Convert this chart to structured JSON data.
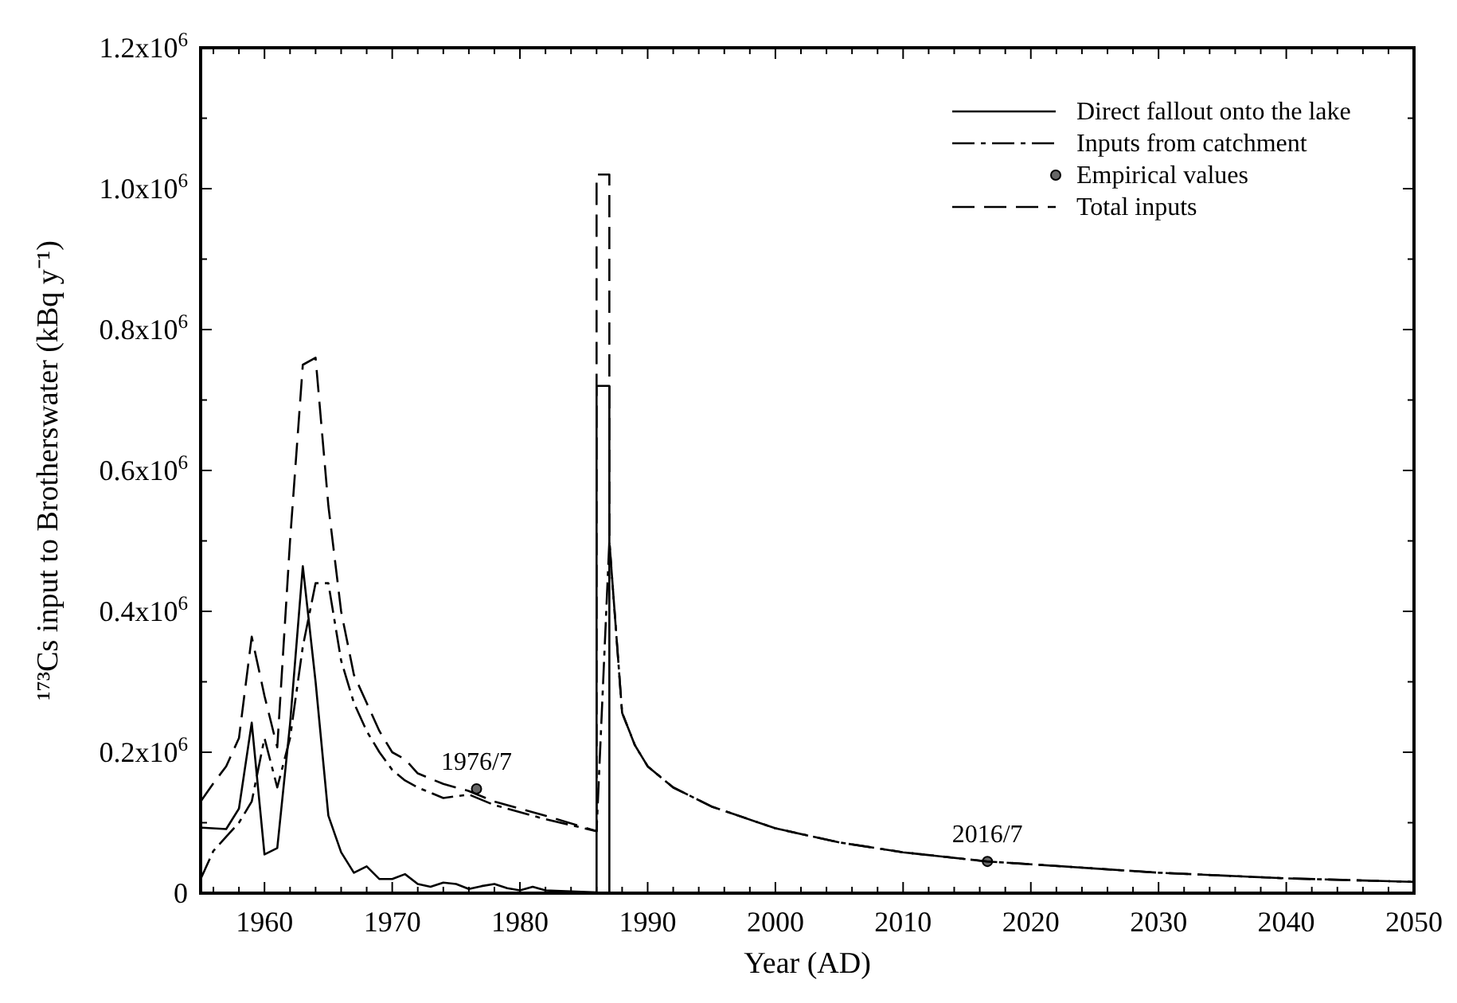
{
  "chart_data": {
    "type": "line",
    "xlabel": "Year (AD)",
    "ylabel": "¹⁷³Cs input to Brotherswater (kBq y⁻¹)",
    "xlim": [
      1955,
      2050
    ],
    "ylim": [
      0,
      1200000
    ],
    "xticks": [
      {
        "value": 1956,
        "label": null
      },
      {
        "value": 1958,
        "label": null
      },
      1960,
      {
        "value": 1962,
        "label": null
      },
      {
        "value": 1964,
        "label": null
      },
      {
        "value": 1966,
        "label": null
      },
      {
        "value": 1968,
        "label": null
      },
      1970,
      {
        "value": 1972,
        "label": null
      },
      {
        "value": 1974,
        "label": null
      },
      {
        "value": 1976,
        "label": null
      },
      {
        "value": 1978,
        "label": null
      },
      1980,
      {
        "value": 1982,
        "label": null
      },
      {
        "value": 1984,
        "label": null
      },
      {
        "value": 1986,
        "label": null
      },
      {
        "value": 1988,
        "label": null
      },
      1990,
      {
        "value": 1992,
        "label": null
      },
      {
        "value": 1994,
        "label": null
      },
      {
        "value": 1996,
        "label": null
      },
      {
        "value": 1998,
        "label": null
      },
      2000,
      {
        "value": 2002,
        "label": null
      },
      {
        "value": 2004,
        "label": null
      },
      {
        "value": 2006,
        "label": null
      },
      {
        "value": 2008,
        "label": null
      },
      2010,
      {
        "value": 2012,
        "label": null
      },
      {
        "value": 2014,
        "label": null
      },
      {
        "value": 2016,
        "label": null
      },
      {
        "value": 2018,
        "label": null
      },
      2020,
      {
        "value": 2022,
        "label": null
      },
      {
        "value": 2024,
        "label": null
      },
      {
        "value": 2026,
        "label": null
      },
      {
        "value": 2028,
        "label": null
      },
      2030,
      {
        "value": 2032,
        "label": null
      },
      {
        "value": 2034,
        "label": null
      },
      {
        "value": 2036,
        "label": null
      },
      {
        "value": 2038,
        "label": null
      },
      2040,
      {
        "value": 2042,
        "label": null
      },
      {
        "value": 2044,
        "label": null
      },
      {
        "value": 2046,
        "label": null
      },
      {
        "value": 2048,
        "label": null
      },
      2050
    ],
    "yticks": [
      0,
      {
        "value": 100000,
        "label": null
      },
      {
        "value": 200000,
        "label": "0.2x10$^{6}$"
      },
      {
        "value": 300000,
        "label": null
      },
      {
        "value": 400000,
        "label": "0.4x10$^{6}$"
      },
      {
        "value": 500000,
        "label": null
      },
      {
        "value": 600000,
        "label": "0.6x10$^{6}$"
      },
      {
        "value": 700000,
        "label": null
      },
      {
        "value": 800000,
        "label": "0.8x10$^{6}$"
      },
      {
        "value": 900000,
        "label": null
      },
      {
        "value": 1000000,
        "label": "1.0x10$^{6}$"
      },
      {
        "value": 1100000,
        "label": null
      },
      {
        "value": 1200000,
        "label": "1.2x10$^{6}$"
      }
    ],
    "grid": false,
    "legend": "top right",
    "series": [
      {
        "name": "Direct fallout onto the lake",
        "color": "#000000",
        "line_style": "solid",
        "x": [
          1955,
          1957,
          1958,
          1959,
          1960,
          1961,
          1962,
          1963,
          1964,
          1965,
          1966,
          1967,
          1968,
          1969,
          1970,
          1971,
          1972,
          1973,
          1974,
          1975,
          1976,
          1977,
          1978,
          1979,
          1980,
          1981,
          1982,
          1986,
          1986,
          1987,
          1987
        ],
        "values": [
          93000,
          91000,
          120000,
          242000,
          55000,
          64000,
          240000,
          464000,
          300000,
          110000,
          58000,
          29000,
          38000,
          20000,
          20000,
          27000,
          13000,
          9000,
          15000,
          13000,
          6000,
          10000,
          13000,
          7000,
          4000,
          9000,
          4000,
          1000,
          720000,
          720000,
          0
        ]
      },
      {
        "name": "Inputs from catchment",
        "color": "#000000",
        "line_style": "dashdot",
        "x": [
          1955,
          1956,
          1957,
          1958,
          1959,
          1960,
          1961,
          1962,
          1963,
          1964,
          1965,
          1966,
          1967,
          1968,
          1969,
          1970,
          1971,
          1972,
          1974,
          1976,
          1978,
          1980,
          1982,
          1986,
          1987,
          1988,
          1989,
          1990,
          1992,
          1995,
          2000,
          2005,
          2010,
          2016.6,
          2020,
          2030,
          2040,
          2050
        ],
        "values": [
          20000,
          60000,
          80000,
          100000,
          130000,
          220000,
          150000,
          220000,
          350000,
          440000,
          440000,
          330000,
          270000,
          230000,
          200000,
          175000,
          160000,
          150000,
          135000,
          140000,
          125000,
          115000,
          105000,
          88000,
          500000,
          256000,
          210000,
          180000,
          150000,
          123000,
          92000,
          72000,
          58000,
          45000,
          41000,
          29000,
          21000,
          16000
        ]
      },
      {
        "name": "Empirical values",
        "color": "#000000",
        "type": "scatter",
        "marker": "circle",
        "x": [
          1976.6,
          2016.6
        ],
        "values": [
          148000,
          45000
        ]
      },
      {
        "name": "Total inputs",
        "color": "#000000",
        "line_style": "dashed",
        "x": [
          1955,
          1956,
          1957,
          1958,
          1959,
          1960,
          1961,
          1962,
          1963,
          1964,
          1965,
          1966,
          1967,
          1968,
          1969,
          1970,
          1971,
          1972,
          1974,
          1976,
          1978,
          1980,
          1982,
          1986,
          1986,
          1987,
          1987,
          1988,
          1989,
          1990,
          1992,
          1995,
          2000,
          2005,
          2010,
          2016.6,
          2020,
          2030,
          2040,
          2050
        ],
        "values": [
          130000,
          156000,
          180000,
          220000,
          364000,
          280000,
          207000,
          500000,
          750000,
          760000,
          550000,
          400000,
          310000,
          270000,
          230000,
          200000,
          190000,
          170000,
          155000,
          145000,
          130000,
          120000,
          110000,
          88000,
          1020000,
          1020000,
          500000,
          256000,
          210000,
          180000,
          150000,
          123000,
          92000,
          72000,
          58000,
          45000,
          41000,
          29000,
          21000,
          16000
        ]
      }
    ],
    "annotations": [
      {
        "text": "1976/7",
        "x": 1976.6,
        "y": 148000
      },
      {
        "text": "2016/7",
        "x": 2016.6,
        "y": 45000
      }
    ]
  }
}
